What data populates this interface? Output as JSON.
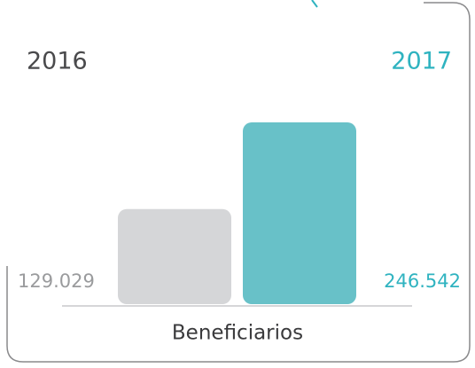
{
  "chart_data": {
    "type": "bar",
    "categories": [
      "2016",
      "2017"
    ],
    "values": [
      129029,
      246542
    ],
    "value_labels": [
      "129.029",
      "246.542"
    ],
    "colors": [
      "#d5d6d8",
      "#68c1c8"
    ],
    "label_colors": [
      "#9a9b9d",
      "#2fb3c0"
    ],
    "category_colors": [
      "#4a4a4c",
      "#2fb3c0"
    ],
    "xlabel": "Beneficiarios"
  }
}
